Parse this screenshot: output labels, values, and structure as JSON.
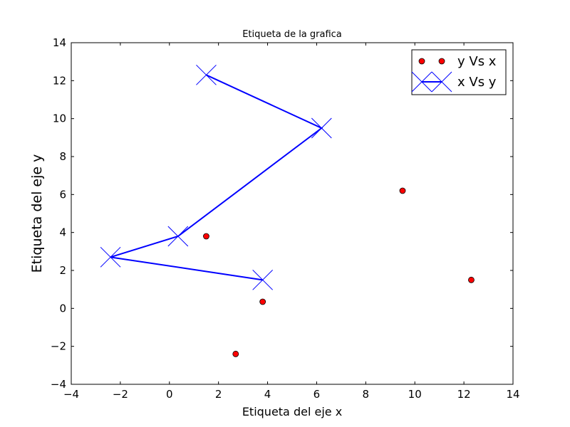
{
  "chart_data": {
    "type": "scatter",
    "title": "Etiqueta de la grafica",
    "xlabel": "Etiqueta del eje x",
    "ylabel": "Etiqueta del eje y",
    "xlim": [
      -4,
      14
    ],
    "ylim": [
      -4,
      14
    ],
    "xticks": [
      -4,
      -2,
      0,
      2,
      4,
      6,
      8,
      10,
      12,
      14
    ],
    "yticks": [
      -4,
      -2,
      0,
      2,
      4,
      6,
      8,
      10,
      12,
      14
    ],
    "xtick_labels": [
      "−4",
      "−2",
      "0",
      "2",
      "4",
      "6",
      "8",
      "10",
      "12",
      "14"
    ],
    "ytick_labels": [
      "−4",
      "−2",
      "0",
      "2",
      "4",
      "6",
      "8",
      "10",
      "12",
      "14"
    ],
    "grid": false,
    "legend_position": "top-right",
    "series": [
      {
        "name": "y Vs x",
        "style": "markers",
        "marker": "circle",
        "color": "#ff0000",
        "edge_color": "#000000",
        "x": [
          1.5,
          3.8,
          2.7,
          9.5,
          12.3
        ],
        "y": [
          3.8,
          0.35,
          -2.4,
          6.2,
          1.5
        ]
      },
      {
        "name": "x Vs y",
        "style": "line+markers",
        "marker": "x",
        "color": "#0000ff",
        "x": [
          1.5,
          6.2,
          0.35,
          -2.4,
          3.8
        ],
        "y": [
          12.3,
          9.5,
          3.8,
          2.7,
          1.5
        ]
      }
    ]
  }
}
